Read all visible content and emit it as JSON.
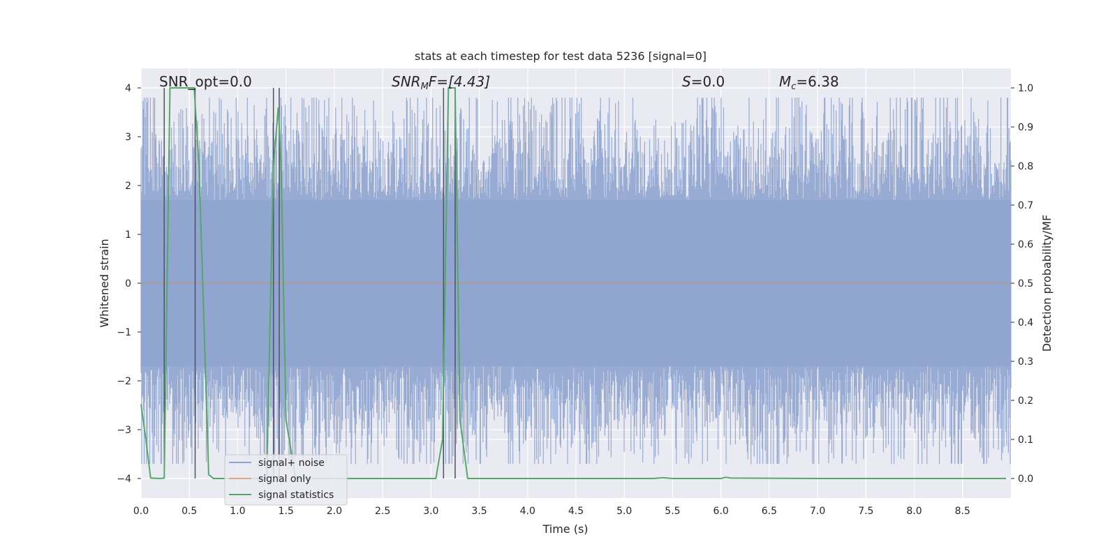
{
  "chart_data": {
    "type": "line",
    "title": "stats at each timestep for test data 5236 [signal=0]",
    "xlabel": "Time (s)",
    "ylabel": "Whitened strain",
    "ylabel_right": "Detection probability/MF",
    "xlim": [
      0.0,
      9.0
    ],
    "ylim": [
      -4.4,
      4.4
    ],
    "ylim_right": [
      -0.05,
      1.05
    ],
    "grid": true,
    "legend_position": "lower-left",
    "x_ticks": [
      "0.0",
      "0.5",
      "1.0",
      "1.5",
      "2.0",
      "2.5",
      "3.0",
      "3.5",
      "4.0",
      "4.5",
      "5.0",
      "5.5",
      "6.0",
      "6.5",
      "7.0",
      "7.5",
      "8.0",
      "8.5"
    ],
    "y_ticks": [
      "4",
      "3",
      "2",
      "1",
      "0",
      "−1",
      "−2",
      "−3",
      "−4"
    ],
    "y_right_ticks": [
      "1.0",
      "0.9",
      "0.8",
      "0.7",
      "0.6",
      "0.5",
      "0.4",
      "0.3",
      "0.2",
      "0.1",
      "0.0"
    ],
    "annotations": {
      "snr_opt": "SNR_opt=0.0",
      "snr_mf_main": "SNR",
      "snr_mf_sub": "M",
      "snr_mf_rest": "F=[4.43]",
      "s_sym": "S",
      "s_val": "=0.0",
      "mc_main": "M",
      "mc_sub": "c",
      "mc_val": "=6.38"
    },
    "series": [
      {
        "name": "signal+ noise",
        "color": "#8fa4cf",
        "description_values": "noise envelope",
        "envelope_typical": 1.7,
        "envelope_peak_upper": 3.8,
        "envelope_peak_lower": -3.7
      },
      {
        "name": "signal only",
        "color": "#dd8452",
        "values_constant": 0.0
      },
      {
        "name": "signal statistics",
        "color": "#55a868",
        "axis": "right",
        "x": [
          0.0,
          0.05,
          0.1,
          0.2,
          0.24,
          0.3,
          0.35,
          0.5,
          0.55,
          0.6,
          0.7,
          0.75,
          0.8,
          1.0,
          1.3,
          1.37,
          1.42,
          1.45,
          1.5,
          1.6,
          2.0,
          2.5,
          3.05,
          3.12,
          3.18,
          3.25,
          3.3,
          3.38,
          3.5,
          4.0,
          5.0,
          5.3,
          5.4,
          5.5,
          6.0,
          6.05,
          6.1,
          7.0,
          8.0,
          8.95
        ],
        "y": [
          0.19,
          0.1,
          0.001,
          0.0,
          0.001,
          1.0,
          1.0,
          1.0,
          1.0,
          0.8,
          0.01,
          0.0,
          0.0,
          0.0,
          0.0,
          0.8,
          0.95,
          0.8,
          0.15,
          0.0,
          0.0,
          0.0,
          0.0,
          0.1,
          1.0,
          1.0,
          0.15,
          0.0,
          0.0,
          0.0,
          0.0,
          0.0,
          0.002,
          0.0,
          0.0,
          0.003,
          0.001,
          0.0,
          0.0,
          0.0
        ]
      }
    ],
    "vertical_markers": [
      0.24,
      0.56,
      1.37,
      1.43,
      3.13,
      3.25
    ],
    "colors": {
      "axes_bg": "#eaeaf2",
      "grid": "#ffffff",
      "marker_line": "#505060",
      "zero_band": "#a0a0a8"
    }
  }
}
